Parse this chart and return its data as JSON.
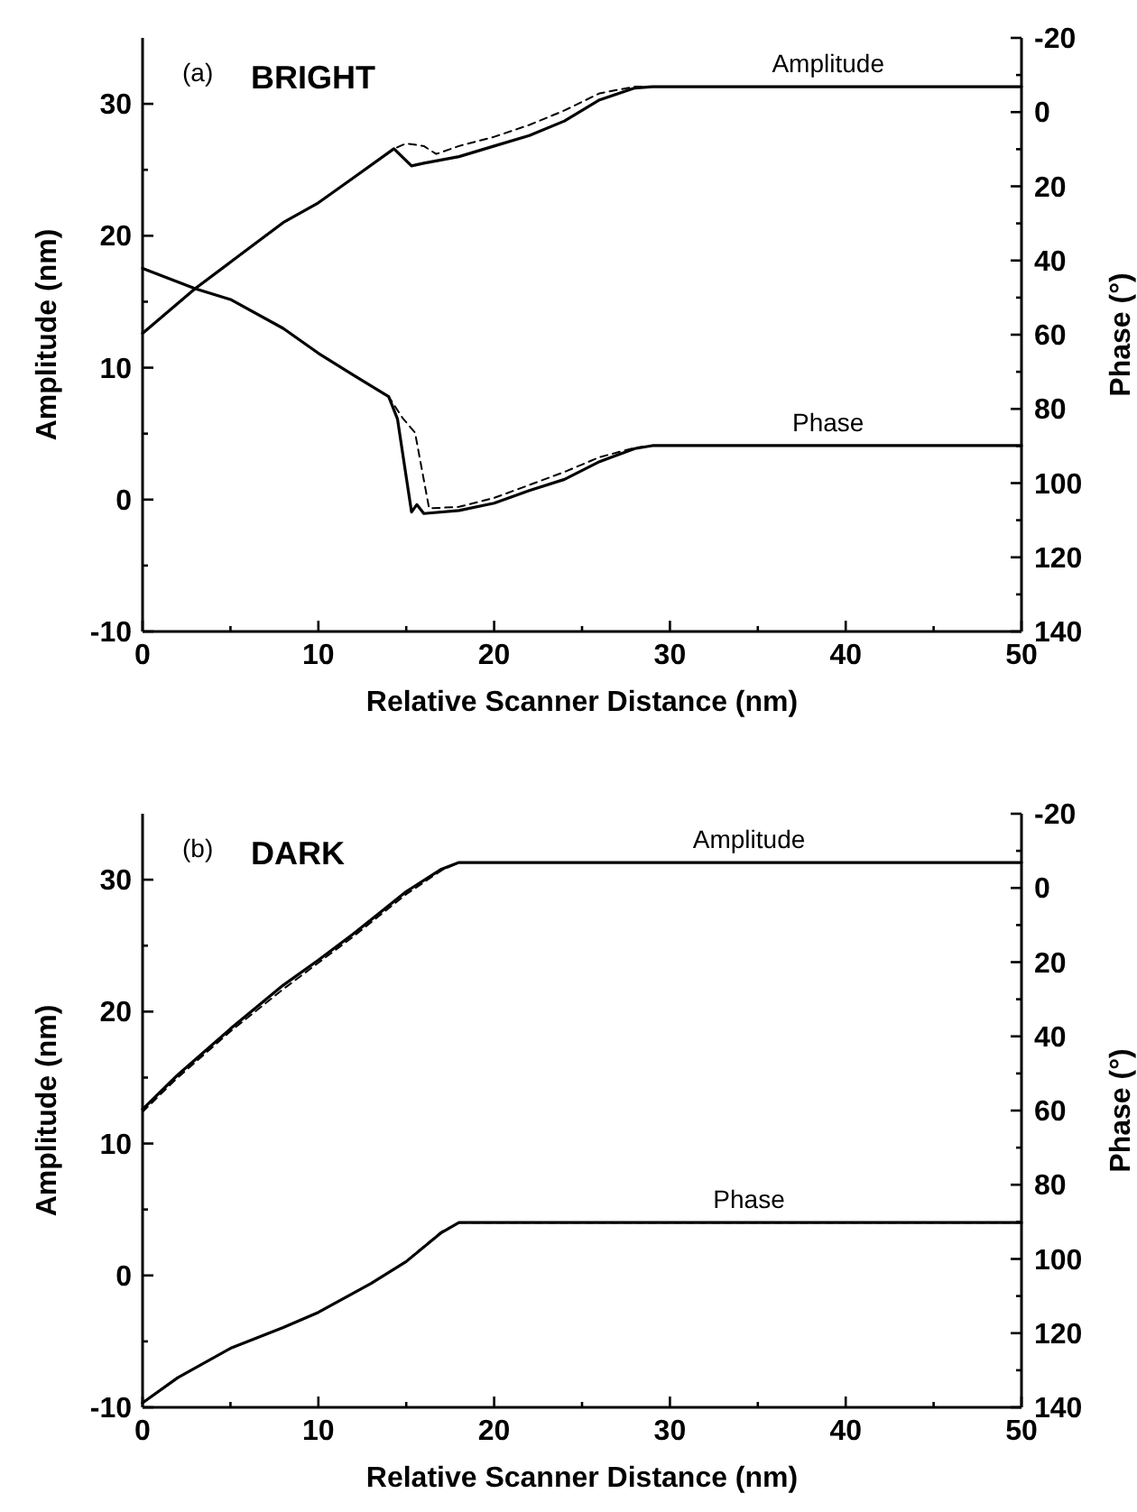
{
  "chart_data": [
    {
      "type": "line",
      "title": "BRIGHT",
      "xlabel": "Relative Scanner Distance (nm)",
      "ylabel": "Amplitude (nm)",
      "y2label": "Phase (°)",
      "xlim": [
        0,
        50
      ],
      "xticks": [
        0,
        {
          "value": 5,
          "label": null
        },
        10,
        {
          "value": 15,
          "label": null
        },
        20,
        {
          "value": 25,
          "label": null
        },
        30,
        {
          "value": 35,
          "label": null
        },
        40,
        {
          "value": 45,
          "label": null
        },
        50
      ],
      "ylim": [
        -10,
        35
      ],
      "yticks": [
        -10,
        {
          "value": -5,
          "label": null
        },
        0,
        {
          "value": 5,
          "label": null
        },
        10,
        {
          "value": 15,
          "label": null
        },
        20,
        {
          "value": 25,
          "label": null
        },
        30
      ],
      "y2lim": [
        140,
        -20
      ],
      "y2ticks": [
        -20,
        {
          "value": -10,
          "label": null
        },
        0,
        {
          "value": 10,
          "label": null
        },
        20,
        {
          "value": 30,
          "label": null
        },
        40,
        {
          "value": 50,
          "label": null
        },
        60,
        {
          "value": 70,
          "label": null
        },
        80,
        {
          "value": 90,
          "label": null
        },
        100,
        {
          "value": 110,
          "label": null
        },
        120,
        {
          "value": 130,
          "label": null
        },
        140
      ],
      "annotations": [
        "(a)"
      ],
      "series": [
        {
          "name": "Amplitude",
          "color": "#000000",
          "line_style": "solid",
          "x": [
            0,
            3,
            5,
            8,
            10,
            12,
            14.3,
            15.3,
            16,
            18,
            20,
            22,
            24,
            26,
            28,
            29,
            50
          ],
          "values": [
            12.6,
            16,
            18,
            21,
            22.5,
            24.4,
            26.6,
            25.3,
            25.5,
            26,
            26.8,
            27.6,
            28.7,
            30.3,
            31.2,
            31.3,
            31.3
          ]
        },
        {
          "color": "#000000",
          "line_style": "dashed",
          "x": [
            0,
            3,
            5,
            8,
            10,
            12,
            14.3,
            15,
            16,
            16.7,
            18,
            20,
            22,
            24,
            26,
            28,
            29,
            50
          ],
          "values": [
            12.6,
            16,
            18,
            21,
            22.5,
            24.4,
            26.6,
            27,
            26.8,
            26.2,
            26.8,
            27.5,
            28.4,
            29.5,
            30.8,
            31.3,
            31.3,
            31.3
          ]
        },
        {
          "name": "Phase",
          "color": "#000000",
          "line_style": "solid",
          "axis": "y2",
          "x": [
            0,
            3,
            5,
            8,
            10,
            12,
            14,
            14.5,
            15.3,
            15.6,
            16,
            18,
            20,
            22,
            24,
            26,
            28,
            29,
            50
          ],
          "values": [
            42.1,
            47.6,
            50.5,
            58.3,
            65,
            70.9,
            76.7,
            82.7,
            107.8,
            105.8,
            108.2,
            107.4,
            105.4,
            102,
            99,
            94.2,
            90.7,
            89.9,
            89.9
          ]
        },
        {
          "color": "#000000",
          "line_style": "dashed",
          "axis": "y2",
          "x": [
            0,
            3,
            5,
            8,
            10,
            12,
            14,
            14.8,
            15.5,
            16.3,
            18,
            20,
            22,
            24,
            26,
            28,
            29,
            50
          ],
          "values": [
            42.1,
            47.6,
            50.5,
            58.3,
            65,
            70.9,
            76.7,
            82.5,
            86.4,
            106.8,
            106.4,
            104,
            100.5,
            97,
            93,
            90.5,
            89.9,
            89.9
          ]
        }
      ]
    },
    {
      "type": "line",
      "title": "DARK",
      "xlabel": "Relative Scanner Distance (nm)",
      "ylabel": "Amplitude (nm)",
      "y2label": "Phase (°)",
      "xlim": [
        0,
        50
      ],
      "xticks": [
        0,
        {
          "value": 5,
          "label": null
        },
        10,
        {
          "value": 15,
          "label": null
        },
        20,
        {
          "value": 25,
          "label": null
        },
        30,
        {
          "value": 35,
          "label": null
        },
        40,
        {
          "value": 45,
          "label": null
        },
        50
      ],
      "ylim": [
        -10,
        35
      ],
      "yticks": [
        -10,
        {
          "value": -5,
          "label": null
        },
        0,
        {
          "value": 5,
          "label": null
        },
        10,
        {
          "value": 15,
          "label": null
        },
        20,
        {
          "value": 25,
          "label": null
        },
        30
      ],
      "y2lim": [
        140,
        -20
      ],
      "y2ticks": [
        -20,
        {
          "value": -10,
          "label": null
        },
        0,
        {
          "value": 10,
          "label": null
        },
        20,
        {
          "value": 30,
          "label": null
        },
        40,
        {
          "value": 50,
          "label": null
        },
        60,
        {
          "value": 70,
          "label": null
        },
        80,
        {
          "value": 90,
          "label": null
        },
        100,
        {
          "value": 110,
          "label": null
        },
        120,
        {
          "value": 130,
          "label": null
        },
        140
      ],
      "annotations": [
        "(b)"
      ],
      "series": [
        {
          "name": "Amplitude",
          "color": "#000000",
          "line_style": "solid",
          "x": [
            0,
            2,
            5,
            8,
            10,
            12,
            15,
            17,
            18,
            50
          ],
          "values": [
            12.6,
            15.2,
            18.7,
            22,
            23.9,
            25.9,
            29.1,
            30.8,
            31.3,
            31.3
          ]
        },
        {
          "color": "#000000",
          "line_style": "dashed",
          "x": [
            0,
            2,
            5,
            8,
            10,
            12,
            15,
            17,
            18,
            50
          ],
          "values": [
            12.4,
            15,
            18.5,
            21.7,
            23.7,
            25.7,
            28.9,
            30.7,
            31.3,
            31.3
          ]
        },
        {
          "name": "Phase",
          "color": "#000000",
          "line_style": "solid",
          "axis": "y2",
          "x": [
            0,
            2,
            5,
            8,
            10,
            13,
            15,
            17,
            18,
            50
          ],
          "values": [
            138.8,
            132,
            124.1,
            118.5,
            114.4,
            106.6,
            100.7,
            92.9,
            90.2,
            90.2
          ]
        },
        {
          "color": "#000000",
          "line_style": "dashed",
          "axis": "y2",
          "x": [
            0,
            2,
            5,
            8,
            10,
            13,
            15,
            17,
            18,
            50
          ],
          "values": [
            138.8,
            132,
            124.1,
            118.5,
            114.4,
            106.6,
            100.6,
            92.7,
            90.2,
            90.2
          ]
        }
      ]
    }
  ]
}
